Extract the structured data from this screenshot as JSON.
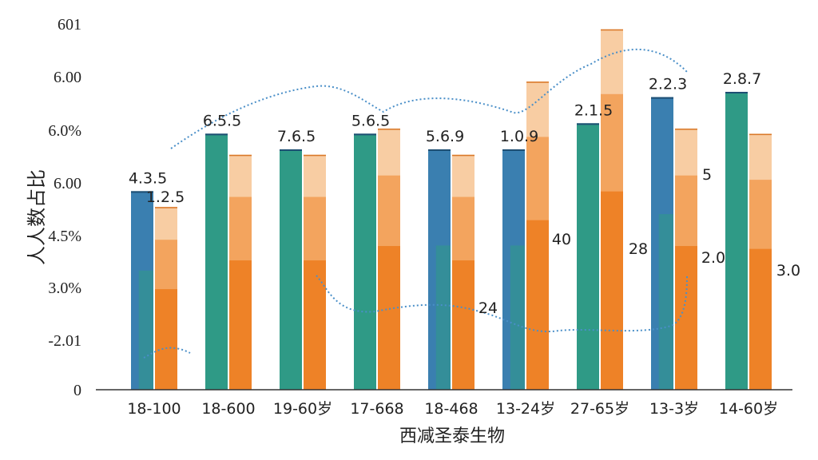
{
  "chart_data": {
    "type": "bar",
    "title": "",
    "xlabel": "西减圣泰生物",
    "ylabel": "人人数占比",
    "y_tick_labels": [
      "0",
      "-2.01",
      "3.0%",
      "4.5%",
      "6.00",
      "6.0%",
      "6.00",
      "601"
    ],
    "ylim": [
      0,
      7
    ],
    "categories": [
      "18-100",
      "18-600",
      "19-60岁",
      "17-668",
      "18-468",
      "13-24岁",
      "27-65岁",
      "13-3岁",
      "14-60岁"
    ],
    "series": [
      {
        "values": [
          3.8,
          0,
          0,
          0,
          4.6,
          4.6,
          0,
          5.6,
          0
        ]
      },
      {
        "values": [
          0,
          4.9,
          4.6,
          4.9,
          0,
          0,
          5.1,
          0,
          5.7
        ]
      },
      {
        "values": [
          3.5,
          4.5,
          4.5,
          5.0,
          4.5,
          5.9,
          6.9,
          5.0,
          4.9
        ]
      }
    ],
    "bar_labels": [
      "4.3.5",
      "6.5.5",
      "7.6.5",
      "5.6.5",
      "5.6.9",
      "1.0.9",
      "2.1.5",
      "2.2.3",
      "2.8.7"
    ],
    "secondary_labels": [
      "1.2.5",
      "24",
      "40",
      "28",
      "5",
      "2.0",
      "3.0"
    ],
    "grid": false,
    "colors": {
      "blue": "#3a7fb0",
      "teal": "#2f9a86",
      "orange_dark": "#ee8227",
      "orange_mid": "#f3a45e",
      "orange_light": "#f8cda3",
      "trend": "#4a8fc8"
    }
  }
}
